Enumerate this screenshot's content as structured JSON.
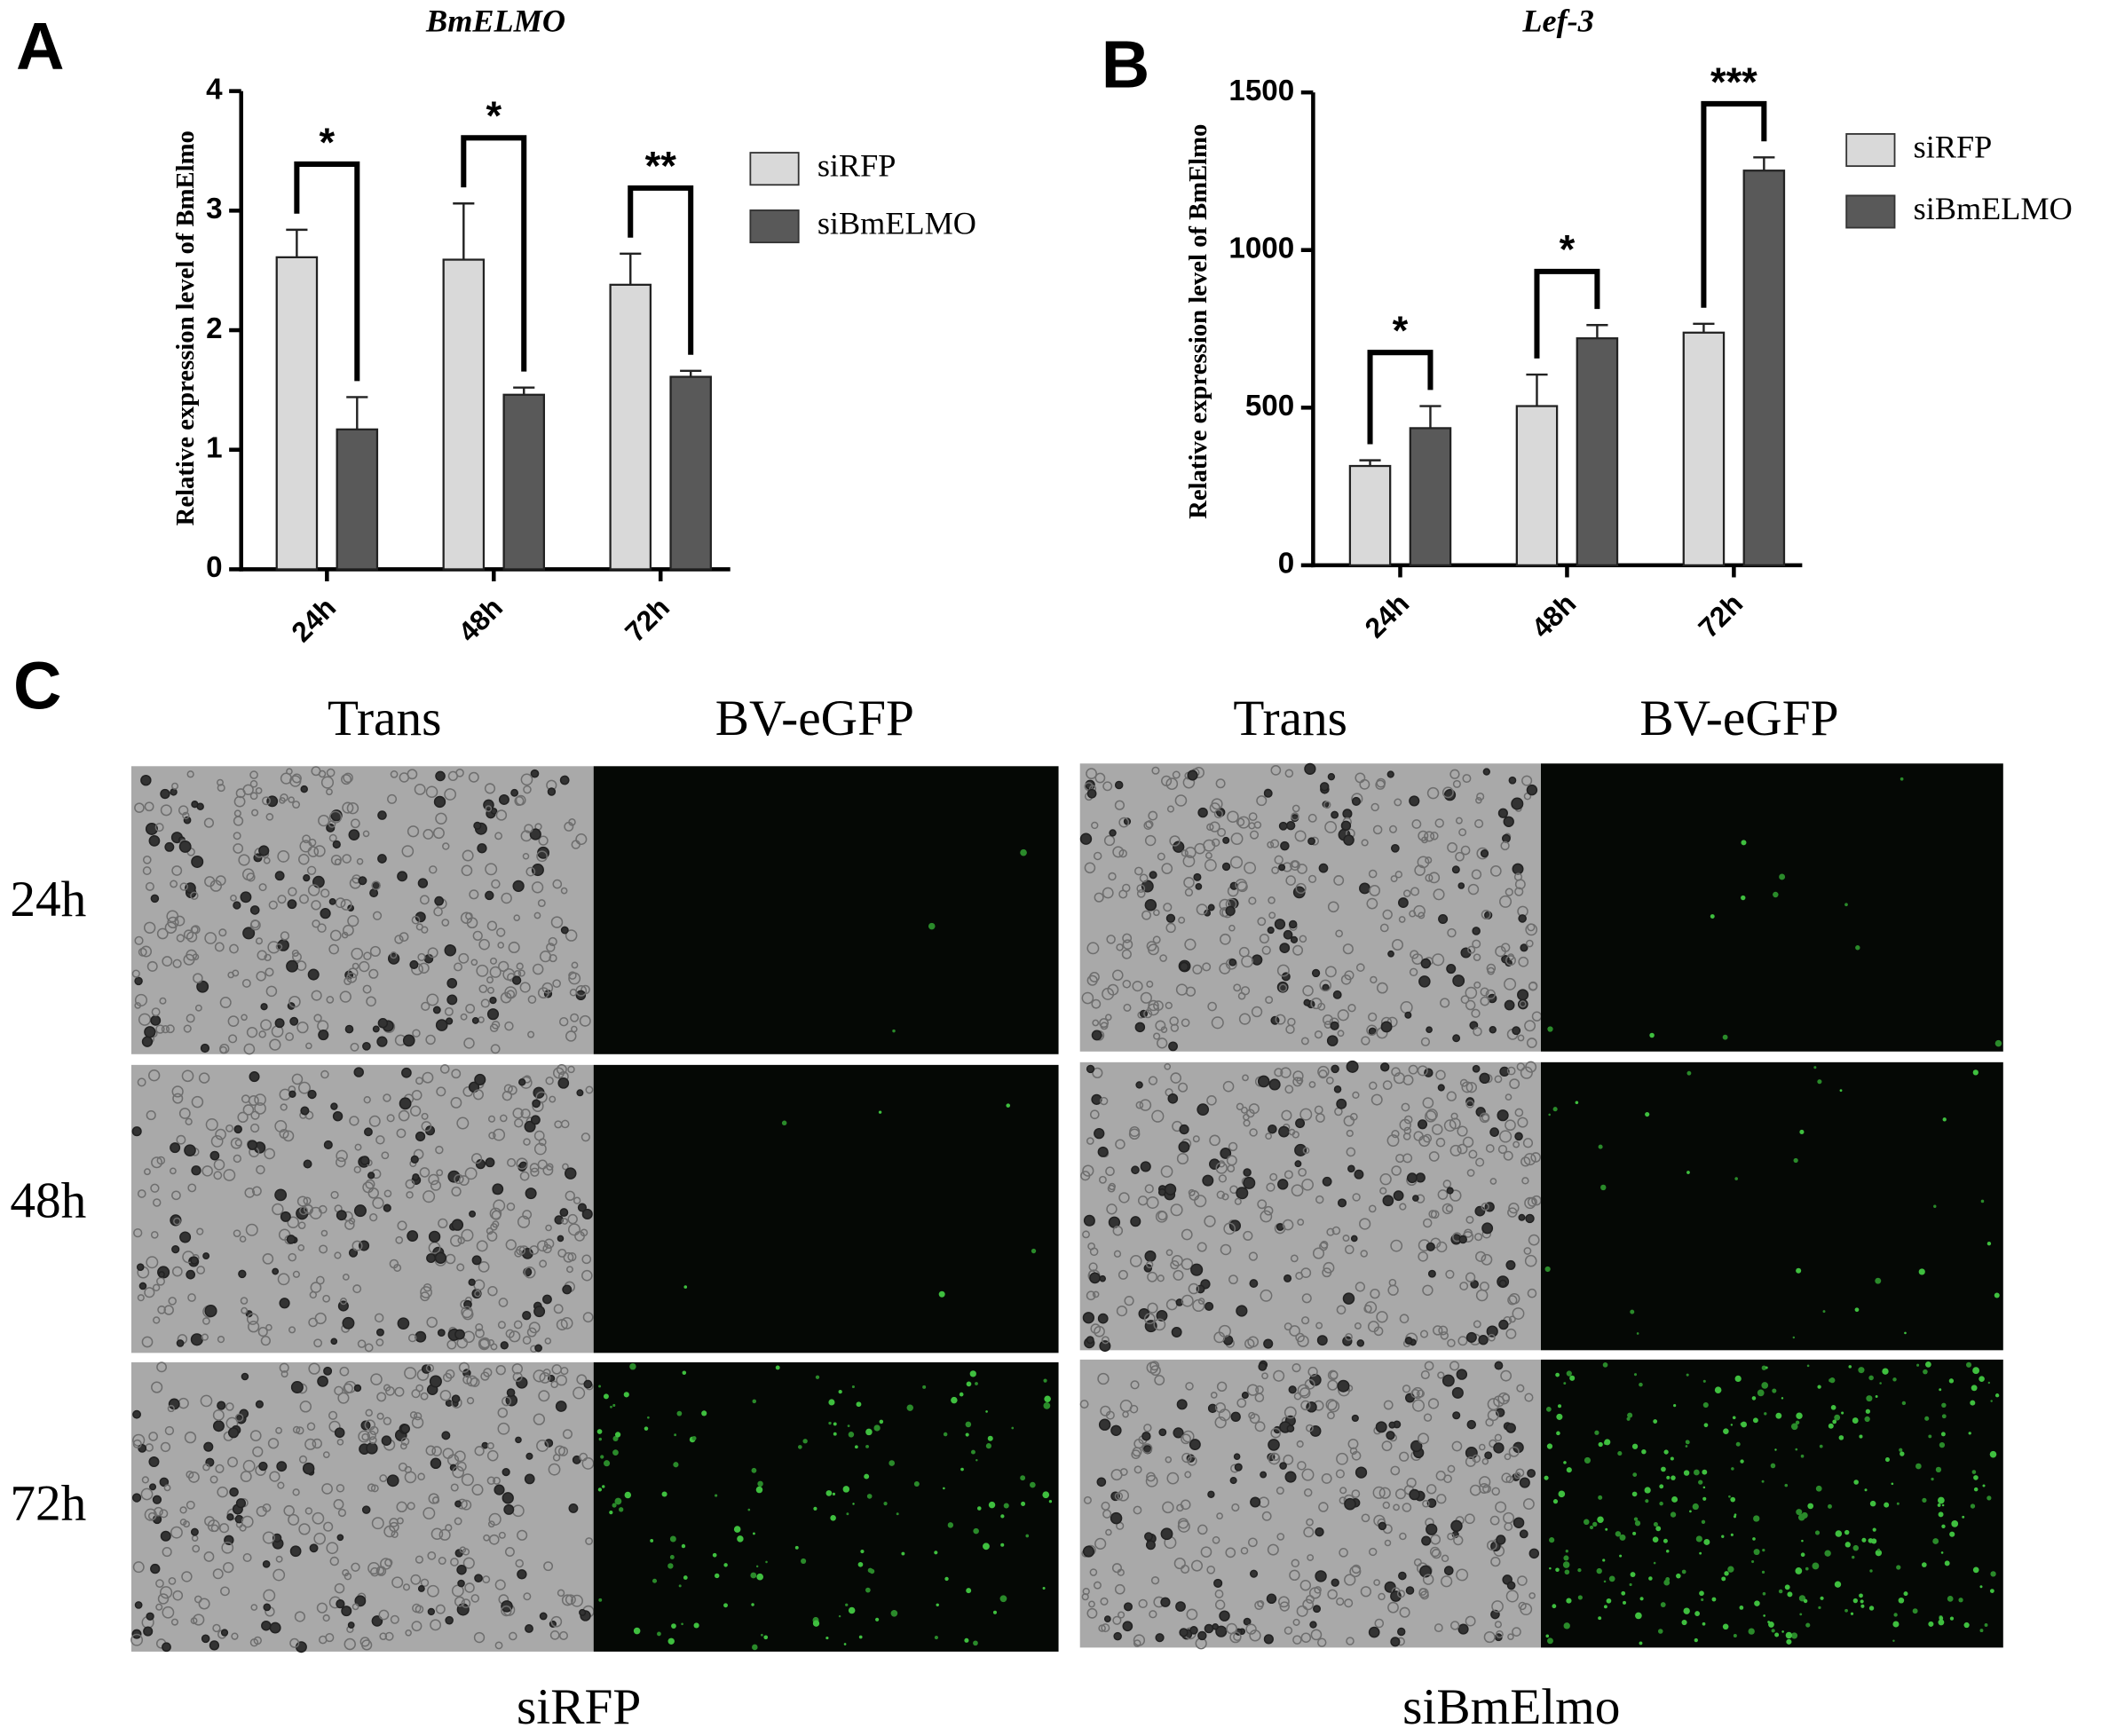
{
  "panel_labels": [
    "A",
    "B",
    "C"
  ],
  "chart_data": [
    {
      "type": "bar",
      "title": "BmELMO",
      "y_label": "Relative expression level of BmElmo",
      "categories": [
        "24h",
        "48h",
        "72h"
      ],
      "series": [
        {
          "name": "siRFP",
          "color": "#d9d9d9",
          "values": [
            2.61,
            2.59,
            2.38
          ],
          "errors": [
            0.23,
            0.47,
            0.26
          ]
        },
        {
          "name": "siBmELMO",
          "color": "#595959",
          "values": [
            1.17,
            1.46,
            1.61
          ],
          "errors": [
            0.27,
            0.06,
            0.05
          ]
        }
      ],
      "significance": [
        "*",
        "*",
        "**"
      ],
      "ylim": [
        0,
        4
      ],
      "yticks": [
        0,
        1,
        2,
        3,
        4
      ]
    },
    {
      "type": "bar",
      "title": "Lef-3",
      "y_label": "Relative expression level of BmElmo",
      "categories": [
        "24h",
        "48h",
        "72h"
      ],
      "series": [
        {
          "name": "siRFP",
          "color": "#d9d9d9",
          "values": [
            315,
            505,
            738
          ],
          "errors": [
            18,
            100,
            28
          ]
        },
        {
          "name": "siBmELMO",
          "color": "#595959",
          "values": [
            435,
            720,
            1252
          ],
          "errors": [
            70,
            42,
            42
          ]
        }
      ],
      "significance": [
        "*",
        "*",
        "***"
      ],
      "ylim": [
        0,
        1500
      ],
      "yticks": [
        0,
        500,
        1000,
        1500
      ]
    }
  ],
  "micrographs": {
    "column_headers": [
      "Trans",
      "BV-eGFP",
      "Trans",
      "BV-eGFP"
    ],
    "row_labels": [
      "24h",
      "48h",
      "72h"
    ],
    "group_labels": [
      "siRFP",
      "siBmElmo"
    ]
  }
}
